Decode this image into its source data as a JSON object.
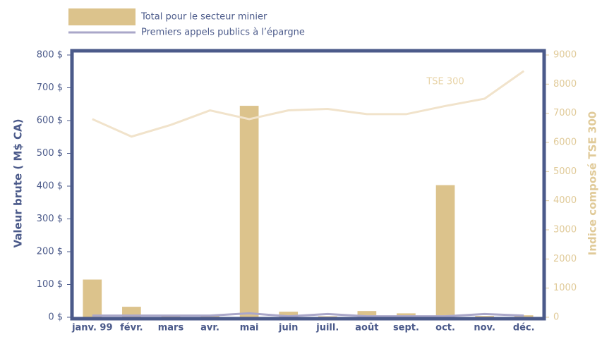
{
  "chart_data": {
    "type": "bar",
    "categories": [
      "janv. 99",
      "févr.",
      "mars",
      "avr.",
      "mai",
      "juin",
      "juill.",
      "août",
      "sept.",
      "oct.",
      "nov.",
      "déc."
    ],
    "series": [
      {
        "name": "Total pour le secteur minier",
        "color": "#dcc38c",
        "type": "bar",
        "values": [
          115,
          32,
          7,
          7,
          645,
          17,
          3,
          19,
          12,
          403,
          4,
          6
        ]
      },
      {
        "name": "Premiers appels publics à l’épargne",
        "color": "#aaa7c9",
        "type": "line",
        "values": [
          5,
          5,
          5,
          5,
          12,
          3,
          10,
          3,
          3,
          3,
          10,
          5
        ]
      },
      {
        "name": "TSE 300",
        "color": "#f1e3cb",
        "type": "line",
        "axis": "y2",
        "values": [
          6800,
          6200,
          6600,
          7100,
          6800,
          7100,
          7150,
          6970,
          6970,
          7250,
          7500,
          8450
        ]
      }
    ],
    "ylabel": "Valeur brute ( M$ CA)",
    "y2label": "Indice composé TSE 300",
    "ylim": [
      0,
      800
    ],
    "yticks": [
      {
        "value": 0,
        "label": "0 $"
      },
      {
        "value": 100,
        "label": "100 $"
      },
      {
        "value": 200,
        "label": "200 $"
      },
      {
        "value": 300,
        "label": "300 $"
      },
      {
        "value": 400,
        "label": "400 $"
      },
      {
        "value": 500,
        "label": "500 $"
      },
      {
        "value": 600,
        "label": "600 $"
      },
      {
        "value": 700,
        "label": "700 $"
      },
      {
        "value": 800,
        "label": "800 $"
      }
    ],
    "y2lim": [
      0,
      9000
    ],
    "y2ticks": [
      0,
      1000,
      2000,
      3000,
      4000,
      5000,
      6000,
      7000,
      8000,
      9000
    ],
    "grid": false
  }
}
